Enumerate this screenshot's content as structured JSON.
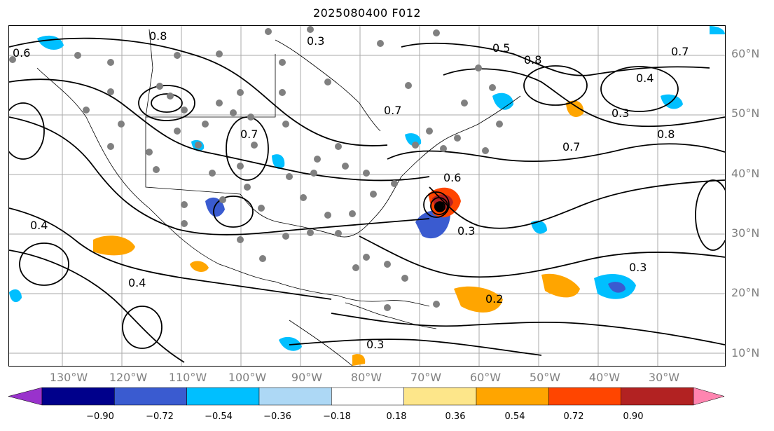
{
  "title": "2025080400 F012",
  "lat_labels": [
    "60°N",
    "50°N",
    "40°N",
    "30°N",
    "20°N",
    "10°N"
  ],
  "lon_labels": [
    "130°W",
    "120°W",
    "110°W",
    "100°W",
    "90°W",
    "80°W",
    "70°W",
    "60°W",
    "50°W",
    "40°W",
    "30°W"
  ],
  "contour_labels": [
    "0.3",
    "0.4",
    "0.5",
    "0.6",
    "0.7",
    "0.8",
    "0.2"
  ],
  "colorbar": {
    "ticks": [
      "−0.90",
      "−0.72",
      "−0.54",
      "−0.36",
      "−0.18",
      "0.18",
      "0.36",
      "0.54",
      "0.72",
      "0.90"
    ],
    "colors": [
      "#9932cc",
      "#00008b",
      "#3a5bd0",
      "#00bfff",
      "#add8f5",
      "#ffffff",
      "#fde68a",
      "#ffa500",
      "#ff4500",
      "#b22222",
      "#ff85b0"
    ]
  }
}
